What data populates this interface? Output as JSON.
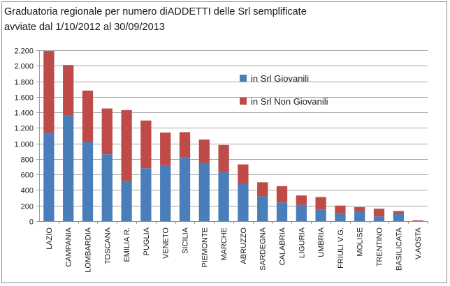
{
  "chart_data": {
    "type": "bar",
    "stacked": true,
    "title_lines": [
      "Graduatoria regionale per numero diADDETTI delle Srl semplificate",
      "avviate dal 1/10/2012 al 30/09/2013"
    ],
    "xlabel": "",
    "ylabel": "",
    "ylim": [
      0,
      2200
    ],
    "yticks": [
      0,
      200,
      400,
      600,
      800,
      1000,
      1200,
      1400,
      1600,
      1800,
      2000,
      2200
    ],
    "ytick_labels": [
      "0",
      "200",
      "400",
      "600",
      "800",
      "1.000",
      "1.200",
      "1.400",
      "1.600",
      "1.800",
      "2.000",
      "2.200"
    ],
    "grid": true,
    "legend_position": "top-right",
    "categories": [
      "LAZIO",
      "CAMPANIA",
      "LOMBARDIA",
      "TOSCANA",
      "EMILIA R.",
      "PUGLIA",
      "VENETO",
      "SICILIA",
      "PIEMONTE",
      "MARCHE",
      "ABRUZZO",
      "SARDEGNA",
      "CALABRIA",
      "LIGURIA",
      "UMBRIA",
      "FRIULI V.G.",
      "MOLISE",
      "TRENTINO",
      "BASILICATA",
      "V.AOSTA"
    ],
    "series": [
      {
        "name": "in Srl Giovanili",
        "color": "#4a7ebb",
        "values": [
          1140,
          1360,
          1015,
          860,
          520,
          680,
          720,
          820,
          750,
          630,
          480,
          320,
          240,
          210,
          150,
          100,
          130,
          60,
          90,
          0
        ]
      },
      {
        "name": "in Srl Non Giovanili",
        "color": "#be4b48",
        "values": [
          1050,
          650,
          665,
          590,
          910,
          615,
          420,
          325,
          300,
          350,
          250,
          180,
          210,
          120,
          160,
          100,
          50,
          100,
          40,
          10
        ]
      }
    ]
  }
}
